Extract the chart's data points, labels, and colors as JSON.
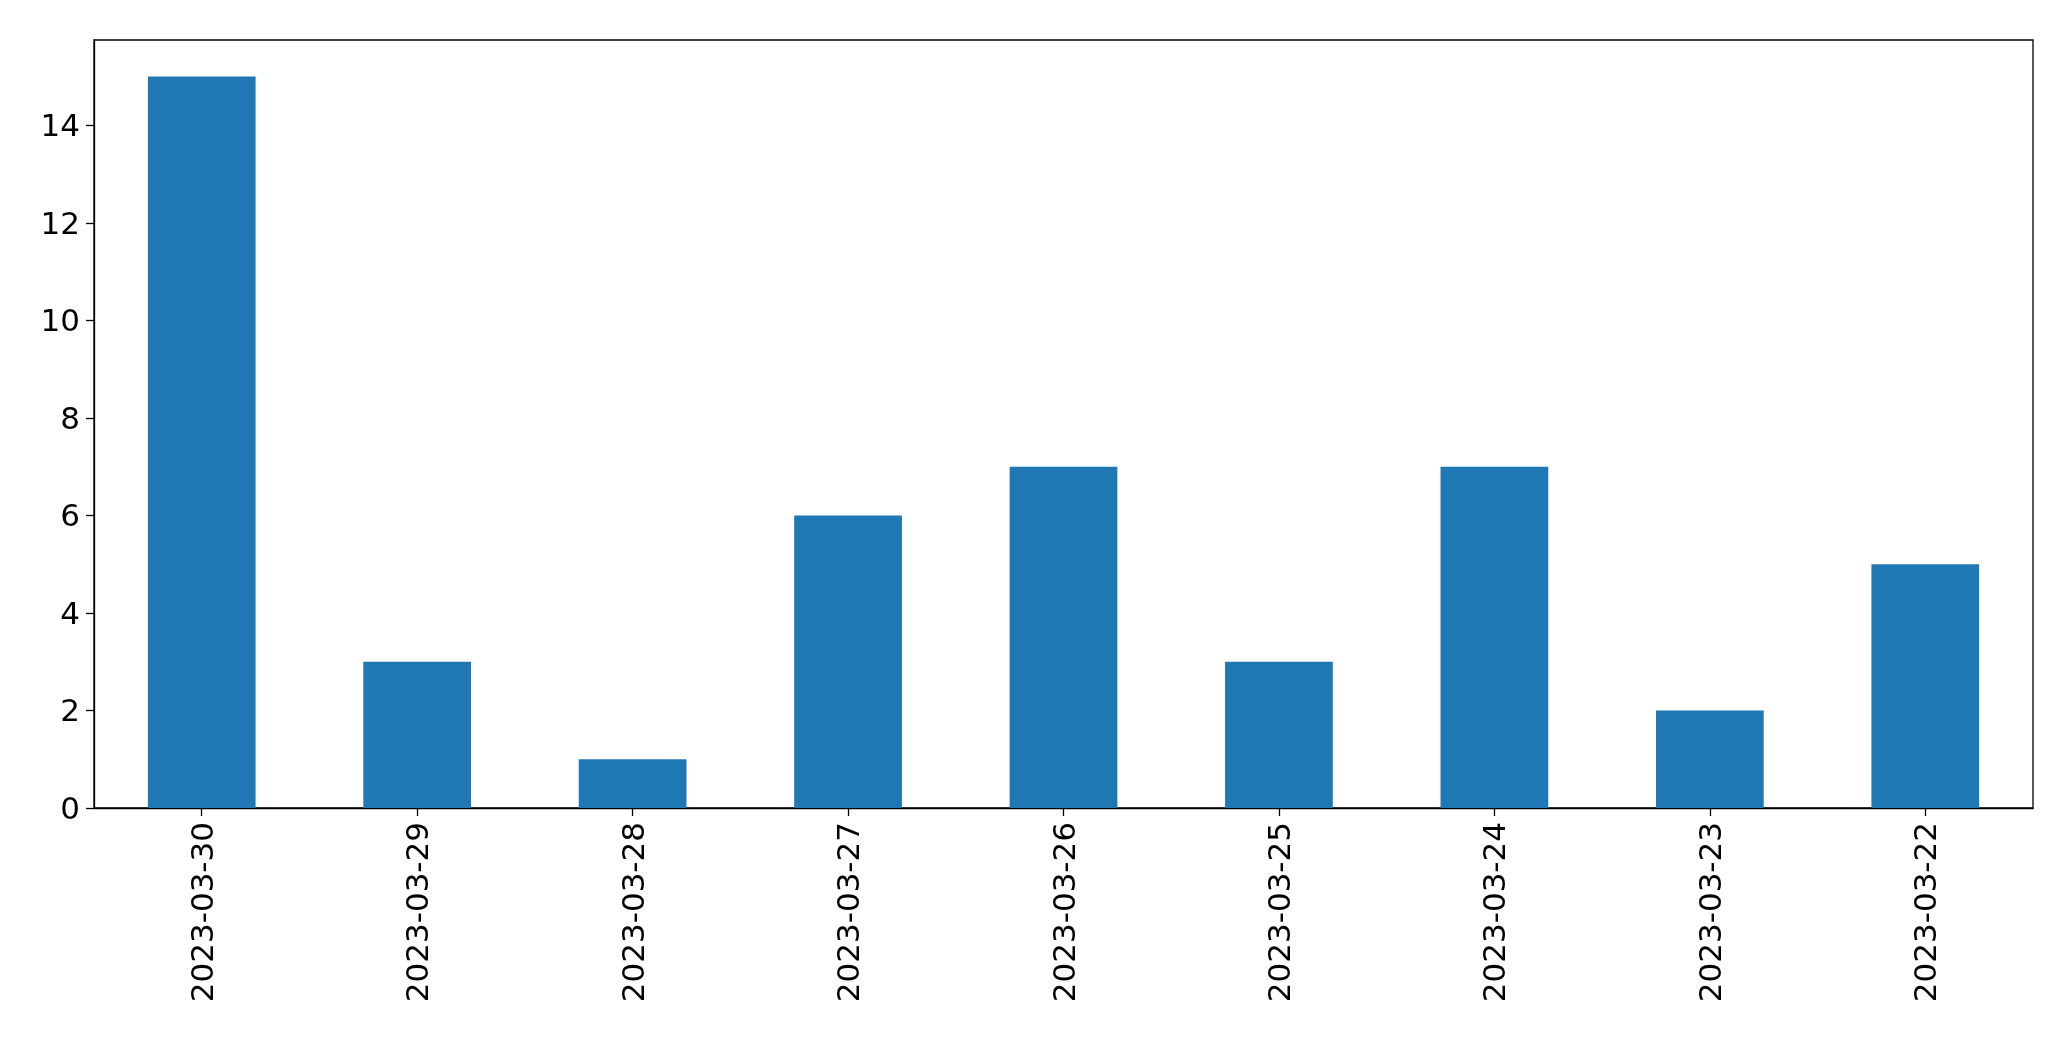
{
  "chart_data": {
    "type": "bar",
    "categories": [
      "2023-03-30",
      "2023-03-29",
      "2023-03-28",
      "2023-03-27",
      "2023-03-26",
      "2023-03-25",
      "2023-03-24",
      "2023-03-23",
      "2023-03-22"
    ],
    "values": [
      15,
      3,
      1,
      6,
      7,
      3,
      7,
      2,
      5
    ],
    "color": "#1f77b4",
    "ylim": [
      0,
      15.75
    ],
    "yticks": [
      0,
      2,
      4,
      6,
      8,
      10,
      12,
      14
    ]
  }
}
